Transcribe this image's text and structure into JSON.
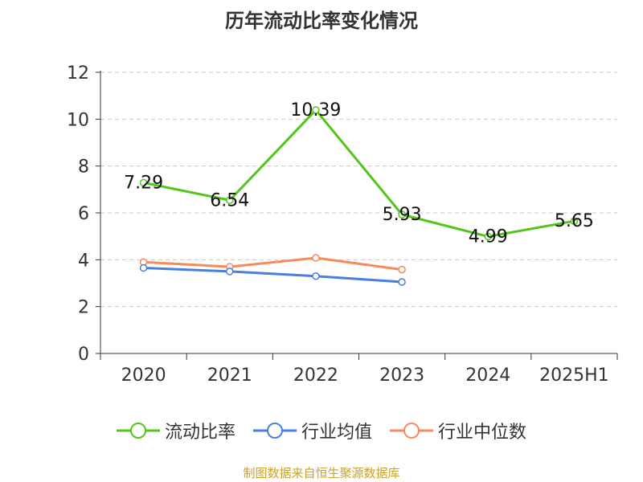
{
  "chart_data": {
    "type": "line",
    "title": "历年流动比率变化情况",
    "categories": [
      "2020",
      "2021",
      "2022",
      "2023",
      "2024",
      "2025H1"
    ],
    "ylim": [
      0,
      12
    ],
    "yticks": [
      0,
      2,
      4,
      6,
      8,
      10,
      12
    ],
    "grid": true,
    "legend_position": "bottom",
    "series": [
      {
        "name": "流动比率",
        "color": "#52c41a",
        "values": [
          7.29,
          6.54,
          10.39,
          5.93,
          4.99,
          5.65
        ],
        "labels": [
          "7.29",
          "6.54",
          "10.39",
          "5.93",
          "4.99",
          "5.65"
        ]
      },
      {
        "name": "行业均值",
        "color": "#4a7fdb",
        "values": [
          3.65,
          3.5,
          3.3,
          3.05,
          null,
          null
        ]
      },
      {
        "name": "行业中位数",
        "color": "#f58b5a",
        "values": [
          3.9,
          3.7,
          4.08,
          3.58,
          null,
          null
        ]
      }
    ]
  },
  "source": "制图数据来自恒生聚源数据库"
}
